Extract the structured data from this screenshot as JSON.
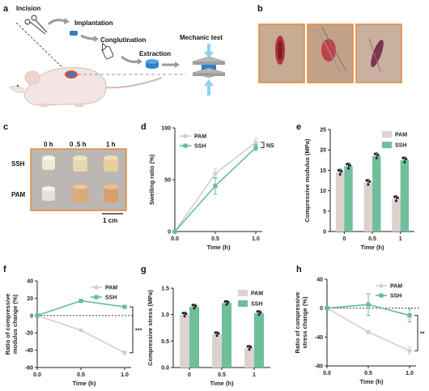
{
  "panel_labels": {
    "a": "a",
    "b": "b",
    "c": "c",
    "d": "d",
    "e": "e",
    "f": "f",
    "g": "g",
    "h": "h"
  },
  "panel_a": {
    "incision": "Incision",
    "implantation": "Implantation",
    "conglutination": "Conglutination",
    "extraction": "Extraction",
    "mechanic_test": "Mechanic test"
  },
  "panel_c": {
    "col_labels": [
      "0 h",
      "0 .5 h",
      "1 h"
    ],
    "row_labels": [
      "SSH",
      "PAM"
    ],
    "scale": "1 cm"
  },
  "colors": {
    "pam": "#e3d6d3",
    "pam_line": "#d8ccc9",
    "ssh": "#66bd98",
    "bar_pam": "#ded2cf",
    "bar_ssh": "#6fbf9d",
    "dark": "#222222"
  },
  "chart_data": [
    {
      "panel": "d",
      "type": "line",
      "x": [
        0,
        0.5,
        1.0
      ],
      "series": [
        {
          "name": "PAM",
          "values": [
            0,
            56,
            86
          ],
          "err": [
            0,
            5,
            4
          ]
        },
        {
          "name": "SSH",
          "values": [
            0,
            44,
            81
          ],
          "err": [
            0,
            8,
            3
          ]
        }
      ],
      "xlabel": "Time (h)",
      "ylabel": "Swelling ratio (%)",
      "xticks": [
        "0.0",
        "0.5",
        "1.0"
      ],
      "yticks": [
        "0",
        "50",
        "100"
      ],
      "ylim": [
        0,
        100
      ],
      "annotation": "NS"
    },
    {
      "panel": "e",
      "type": "bar",
      "categories": [
        "0",
        "0.5",
        "1"
      ],
      "series": [
        {
          "name": "PAM",
          "values": [
            14.5,
            12,
            8
          ]
        },
        {
          "name": "SSH",
          "values": [
            16,
            18.5,
            17.5
          ]
        }
      ],
      "xlabel": "Time (h)",
      "ylabel": "Compressive modulus (MPa)",
      "yticks": [
        "0",
        "5",
        "10",
        "15",
        "20",
        "25"
      ],
      "ylim": [
        0,
        25
      ]
    },
    {
      "panel": "f",
      "type": "line",
      "x": [
        0,
        0.5,
        1.0
      ],
      "series": [
        {
          "name": "PAM",
          "values": [
            0,
            -17,
            -43
          ],
          "err": [
            0,
            1,
            2
          ]
        },
        {
          "name": "SSH",
          "values": [
            0,
            17,
            10
          ],
          "err": [
            0,
            1,
            1
          ]
        }
      ],
      "xlabel": "Time (h)",
      "ylabel": "Ratio of compressive modulus change (%)",
      "xticks": [
        "0.0",
        "0.5",
        "1.0"
      ],
      "yticks": [
        "40",
        "20",
        "0",
        "-20",
        "-40",
        "-60"
      ],
      "ylim": [
        -60,
        40
      ],
      "annotation": "***"
    },
    {
      "panel": "g",
      "type": "bar",
      "categories": [
        "0",
        "0.5",
        "1"
      ],
      "series": [
        {
          "name": "PAM",
          "values": [
            1.0,
            0.63,
            0.37
          ]
        },
        {
          "name": "SSH",
          "values": [
            1.15,
            1.22,
            1.03
          ]
        }
      ],
      "xlabel": "Time (h)",
      "ylabel": "Compressive stress (MPa)",
      "yticks": [
        "0.0",
        "0.5",
        "1.0",
        "1.5"
      ],
      "ylim": [
        0,
        1.5
      ]
    },
    {
      "panel": "h",
      "type": "line",
      "x": [
        0,
        0.5,
        1.0
      ],
      "series": [
        {
          "name": "PAM",
          "values": [
            0,
            -33,
            -59
          ],
          "err": [
            0,
            2,
            5
          ]
        },
        {
          "name": "SSH",
          "values": [
            0,
            5,
            -10
          ],
          "err": [
            0,
            15,
            9
          ]
        }
      ],
      "xlabel": "Time (h)",
      "ylabel": "Ratio of compressive stress change (%)",
      "xticks": [
        "0.0",
        "0.5",
        "1.0"
      ],
      "yticks": [
        "40",
        "0",
        "-40",
        "-80"
      ],
      "ylim": [
        -80,
        40
      ],
      "annotation": "**"
    }
  ]
}
